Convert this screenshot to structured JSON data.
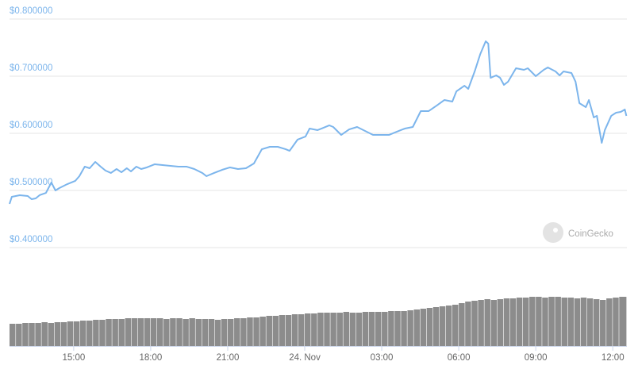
{
  "chart_data": [
    {
      "type": "line",
      "color": "#7cb5ec",
      "grid": true,
      "watermark": "CoinGecko",
      "xlim": [
        12.5,
        36.55
      ],
      "ylim": [
        0.39,
        0.82
      ],
      "yticks": [
        {
          "value": 0.4,
          "label": "$0.400000"
        },
        {
          "value": 0.5,
          "label": "$0.500000"
        },
        {
          "value": 0.6,
          "label": "$0.600000"
        },
        {
          "value": 0.7,
          "label": "$0.700000"
        },
        {
          "value": 0.8,
          "label": "$0.800000"
        }
      ],
      "x": [
        12.5,
        12.59,
        12.9,
        13.21,
        13.36,
        13.52,
        13.67,
        13.92,
        14.13,
        14.29,
        14.44,
        14.75,
        15.06,
        15.22,
        15.43,
        15.62,
        15.84,
        16.05,
        16.24,
        16.45,
        16.67,
        16.86,
        17.07,
        17.23,
        17.44,
        17.63,
        17.85,
        18.15,
        18.46,
        18.77,
        19.08,
        19.39,
        19.7,
        20.01,
        20.17,
        20.47,
        20.78,
        21.09,
        21.4,
        21.71,
        22.02,
        22.33,
        22.64,
        22.95,
        23.26,
        23.41,
        23.72,
        24.03,
        24.19,
        24.5,
        24.65,
        24.96,
        25.11,
        25.42,
        25.73,
        26.04,
        26.35,
        26.66,
        26.97,
        27.28,
        27.59,
        27.9,
        28.21,
        28.52,
        28.83,
        29.14,
        29.44,
        29.75,
        29.91,
        30.22,
        30.37,
        30.62,
        30.84,
        31.05,
        31.15,
        31.24,
        31.46,
        31.61,
        31.76,
        31.92,
        32.23,
        32.54,
        32.69,
        33.0,
        33.31,
        33.47,
        33.77,
        33.93,
        34.08,
        34.39,
        34.55,
        34.7,
        34.95,
        35.07,
        35.26,
        35.38,
        35.57,
        35.69,
        35.94,
        36.13,
        36.31,
        36.47,
        36.53
      ],
      "values": [
        0.4764,
        0.4889,
        0.4917,
        0.4903,
        0.4847,
        0.4861,
        0.4917,
        0.4958,
        0.5139,
        0.5,
        0.5042,
        0.5111,
        0.5167,
        0.525,
        0.5417,
        0.5389,
        0.55,
        0.5417,
        0.5347,
        0.5306,
        0.5375,
        0.5319,
        0.5389,
        0.5333,
        0.5417,
        0.5375,
        0.5403,
        0.5458,
        0.5444,
        0.5431,
        0.5417,
        0.5417,
        0.5375,
        0.5306,
        0.525,
        0.5306,
        0.5361,
        0.5403,
        0.5375,
        0.5389,
        0.5472,
        0.5722,
        0.5764,
        0.5764,
        0.5722,
        0.5694,
        0.5889,
        0.5944,
        0.6083,
        0.6056,
        0.6083,
        0.6139,
        0.6111,
        0.5972,
        0.6069,
        0.6111,
        0.6042,
        0.5972,
        0.5972,
        0.5972,
        0.6028,
        0.6083,
        0.6111,
        0.6389,
        0.6389,
        0.6486,
        0.6583,
        0.6556,
        0.6736,
        0.6833,
        0.6778,
        0.7083,
        0.7389,
        0.7611,
        0.7569,
        0.6972,
        0.7014,
        0.6972,
        0.6847,
        0.6903,
        0.7139,
        0.7111,
        0.7139,
        0.7,
        0.7111,
        0.7153,
        0.7083,
        0.7014,
        0.7083,
        0.7056,
        0.6903,
        0.6528,
        0.6458,
        0.6583,
        0.6278,
        0.6306,
        0.5833,
        0.6056,
        0.6306,
        0.6361,
        0.6375,
        0.6417,
        0.6306
      ]
    },
    {
      "type": "bar",
      "color": "#8c8c8c",
      "xlim": [
        12.5,
        36.55
      ],
      "ylim": [
        0,
        100
      ],
      "xticks": [
        {
          "value": 15,
          "label": "15:00"
        },
        {
          "value": 18,
          "label": "18:00"
        },
        {
          "value": 21,
          "label": "21:00"
        },
        {
          "value": 24,
          "label": "24. Nov"
        },
        {
          "value": 27,
          "label": "03:00"
        },
        {
          "value": 30,
          "label": "06:00"
        },
        {
          "value": 33,
          "label": "09:00"
        },
        {
          "value": 36,
          "label": "12:00"
        }
      ],
      "x": [
        12.5,
        12.75,
        13,
        13.25,
        13.5,
        13.75,
        14,
        14.25,
        14.5,
        14.75,
        15,
        15.25,
        15.5,
        15.75,
        16,
        16.25,
        16.5,
        16.75,
        17,
        17.25,
        17.5,
        17.75,
        18,
        18.25,
        18.5,
        18.75,
        19,
        19.25,
        19.5,
        19.75,
        20,
        20.25,
        20.5,
        20.75,
        21,
        21.25,
        21.5,
        21.75,
        22,
        22.25,
        22.5,
        22.75,
        23,
        23.25,
        23.5,
        23.75,
        24,
        24.25,
        24.5,
        24.75,
        25,
        25.25,
        25.5,
        25.75,
        26,
        26.25,
        26.5,
        26.75,
        27,
        27.25,
        27.5,
        27.75,
        28,
        28.25,
        28.5,
        28.75,
        29,
        29.25,
        29.5,
        29.75,
        30,
        30.25,
        30.5,
        30.75,
        31,
        31.25,
        31.5,
        31.75,
        32,
        32.25,
        32.5,
        32.75,
        33,
        33.25,
        33.5,
        33.75,
        34,
        34.25,
        34.5,
        34.75,
        35,
        35.25,
        35.5,
        35.75,
        36,
        36.25
      ],
      "values": [
        28,
        28,
        29,
        29,
        29,
        30,
        29,
        30,
        30,
        31,
        31,
        32,
        32,
        33,
        33,
        34,
        34,
        34,
        35,
        35,
        35,
        35,
        35,
        35,
        34,
        35,
        35,
        34,
        35,
        34,
        34,
        34,
        33,
        34,
        34,
        35,
        35,
        36,
        36,
        37,
        38,
        38,
        39,
        39,
        40,
        40,
        41,
        41,
        42,
        42,
        42,
        42,
        43,
        42,
        42,
        43,
        43,
        43,
        43,
        44,
        44,
        44,
        45,
        46,
        47,
        48,
        49,
        50,
        51,
        52,
        54,
        56,
        57,
        58,
        59,
        58,
        59,
        60,
        60,
        61,
        61,
        62,
        62,
        61,
        62,
        62,
        61,
        61,
        60,
        61,
        60,
        59,
        58,
        60,
        61,
        62
      ]
    }
  ]
}
